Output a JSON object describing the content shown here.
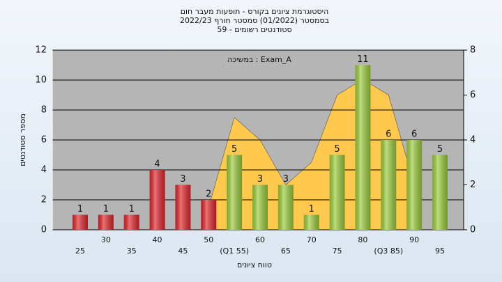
{
  "chart_data": {
    "type": "bar",
    "title": [
      "היסטוגרמת ציונים בקורס - תופעות מעבר חום",
      "בסמסטר  (01/2022)  סמסטר חורף 2022/23",
      "סטודנטים רשומים - 59"
    ],
    "annotation": "במשיכה : Exam_A",
    "y_label": "מספר סטודנטים",
    "x_label": "טווח ציונים",
    "categories": [
      "25",
      "30",
      "35",
      "40",
      "45",
      "50",
      "(Q1 55)",
      "60",
      "65",
      "70",
      "75",
      "80",
      "(Q3 85)",
      "90",
      "95"
    ],
    "series": [
      {
        "type": "bar",
        "values": [
          1,
          1,
          1,
          4,
          3,
          2,
          5,
          3,
          3,
          1,
          5,
          11,
          6,
          6,
          5
        ],
        "colors": [
          "#e0262c",
          "#e0262c",
          "#e0262c",
          "#e0262c",
          "#e0262c",
          "#e0262c",
          "#9ccc3c",
          "#9ccc3c",
          "#9ccc3c",
          "#9ccc3c",
          "#9ccc3c",
          "#9ccc3c",
          "#9ccc3c",
          "#9ccc3c",
          "#9ccc3c"
        ]
      },
      {
        "type": "area",
        "axis": "y2",
        "color": "#ffc94d",
        "values": [
          null,
          null,
          null,
          null,
          null,
          1,
          5,
          4,
          2,
          3,
          6,
          6.7,
          6,
          2,
          null
        ]
      }
    ],
    "ylim": [
      0,
      12
    ],
    "yticks": [
      0,
      2,
      4,
      6,
      8,
      10,
      12
    ],
    "y2lim": [
      0,
      8
    ],
    "y2ticks": [
      0,
      2,
      4,
      6,
      8
    ],
    "grid": true
  }
}
